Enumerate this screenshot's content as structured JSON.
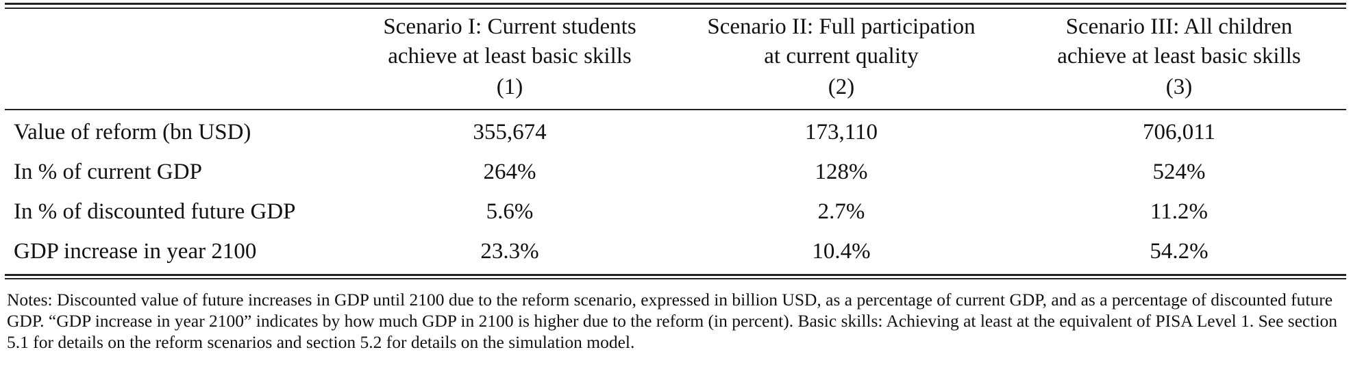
{
  "table": {
    "columns": [
      {
        "title_line1": "Scenario I: Current students",
        "title_line2": "achieve at least basic skills",
        "number": "(1)"
      },
      {
        "title_line1": "Scenario II: Full participation",
        "title_line2": "at current quality",
        "number": "(2)"
      },
      {
        "title_line1": "Scenario III: All children",
        "title_line2": "achieve at least basic skills",
        "number": "(3)"
      }
    ],
    "rows": [
      {
        "label": "Value of reform (bn USD)",
        "values": [
          "355,674",
          "173,110",
          "706,011"
        ]
      },
      {
        "label": "In % of current GDP",
        "values": [
          "264%",
          "128%",
          "524%"
        ]
      },
      {
        "label": "In % of discounted future GDP",
        "values": [
          "5.6%",
          "2.7%",
          "11.2%"
        ]
      },
      {
        "label": "GDP increase in year 2100",
        "values": [
          "23.3%",
          "10.4%",
          "54.2%"
        ]
      }
    ]
  },
  "notes": "Notes: Discounted value of future increases in GDP until 2100 due to the reform scenario, expressed in billion USD, as a percentage of current GDP, and as a percentage of discounted future GDP. “GDP increase in year 2100” indicates by how much GDP in 2100 is higher due to the reform (in percent). Basic skills: Achieving at least at the equivalent of PISA Level 1. See section 5.1 for details on the reform scenarios and section 5.2 for details on the simulation model."
}
